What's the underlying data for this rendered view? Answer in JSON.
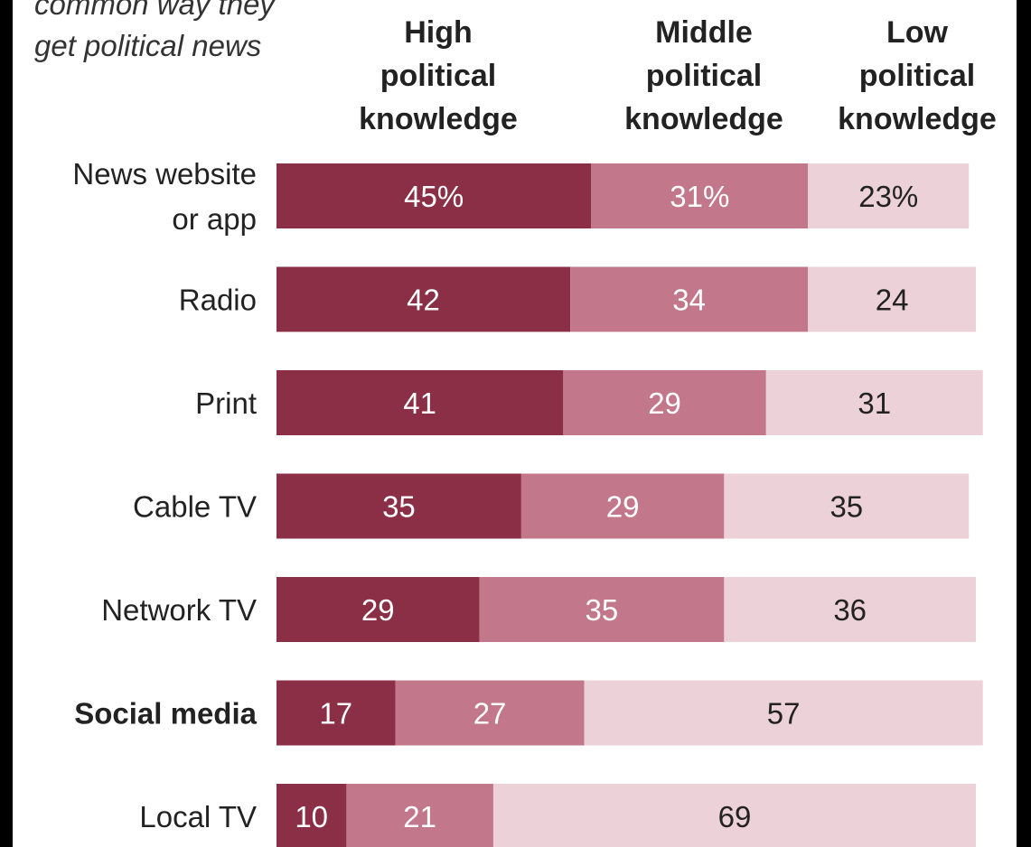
{
  "chart_data": {
    "type": "bar",
    "orientation": "horizontal",
    "stacked": true,
    "subtitle_lines": [
      "common way they",
      "get political news"
    ],
    "series": [
      {
        "name_lines": [
          "High",
          "political",
          "knowledge"
        ],
        "color": "#8a2f45",
        "label_color": "#ffffff"
      },
      {
        "name_lines": [
          "Middle",
          "political",
          "knowledge"
        ],
        "color": "#c2788a",
        "label_color": "#ffffff"
      },
      {
        "name_lines": [
          "Low",
          "political",
          "knowledge"
        ],
        "color": "#ecd2d8",
        "label_color": "#222222"
      }
    ],
    "categories": [
      {
        "label_lines": [
          "News website",
          "or app"
        ],
        "bold": false,
        "values": [
          45,
          31,
          23
        ],
        "labels": [
          "45%",
          "31%",
          "23%"
        ]
      },
      {
        "label_lines": [
          "Radio"
        ],
        "bold": false,
        "values": [
          42,
          34,
          24
        ],
        "labels": [
          "42",
          "34",
          "24"
        ]
      },
      {
        "label_lines": [
          "Print"
        ],
        "bold": false,
        "values": [
          41,
          29,
          31
        ],
        "labels": [
          "41",
          "29",
          "31"
        ]
      },
      {
        "label_lines": [
          "Cable TV"
        ],
        "bold": false,
        "values": [
          35,
          29,
          35
        ],
        "labels": [
          "35",
          "29",
          "35"
        ]
      },
      {
        "label_lines": [
          "Network TV"
        ],
        "bold": false,
        "values": [
          29,
          35,
          36
        ],
        "labels": [
          "29",
          "35",
          "36"
        ]
      },
      {
        "label_lines": [
          "Social media"
        ],
        "bold": true,
        "values": [
          17,
          27,
          57
        ],
        "labels": [
          "17",
          "27",
          "57"
        ]
      },
      {
        "label_lines": [
          "Local TV"
        ],
        "bold": false,
        "values": [
          10,
          21,
          69
        ],
        "labels": [
          "10",
          "21",
          "69"
        ]
      }
    ],
    "xlim": [
      0,
      100
    ],
    "grid": false,
    "legend": "column headers above bars"
  }
}
